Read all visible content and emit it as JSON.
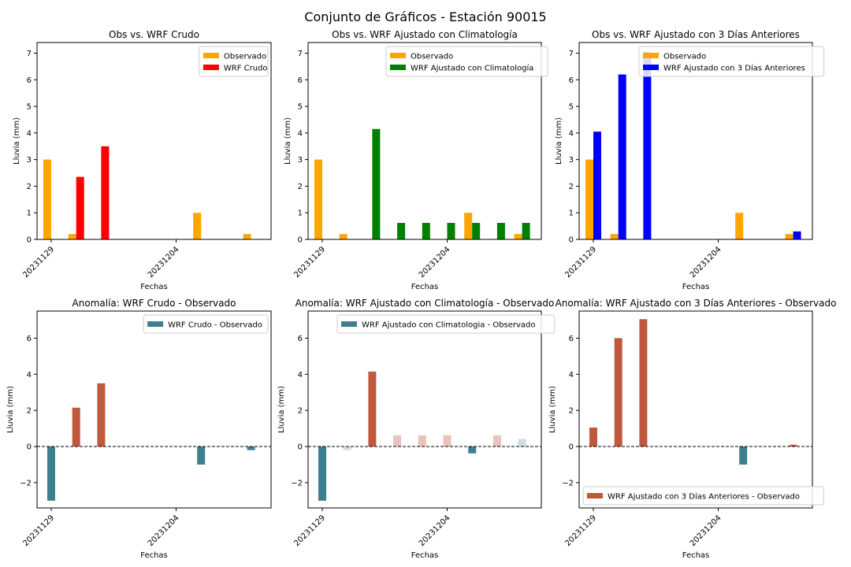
{
  "figure": {
    "suptitle": "Conjunto de Gráficos - Estación 90015"
  },
  "colors": {
    "observado": "#FFA500",
    "wrf_crudo": "#FF0000",
    "wrf_clim": "#008000",
    "wrf_3d": "#0000FF",
    "anom_pos": "#C0583E",
    "anom_neg": "#3D7F8F",
    "anom_pos_light": "#E8C4BA",
    "anom_neg_light": "#CFDCE1"
  },
  "chart_data": [
    {
      "type": "bar",
      "title": "Obs vs. WRF Crudo",
      "xlabel": "Fechas",
      "ylabel": "Lluvia (mm)",
      "ylim": [
        0,
        7.4
      ],
      "yticks": [
        0,
        1,
        2,
        3,
        4,
        5,
        6,
        7
      ],
      "xticks": [
        "20231129",
        "20231204"
      ],
      "legend_position": "upper right",
      "series": [
        {
          "name": "Observado",
          "color": "#FFA500",
          "values": [
            3.0,
            0.2,
            0.0,
            0.0,
            0.0,
            0.0,
            1.0,
            0.0,
            0.2
          ]
        },
        {
          "name": "WRF Crudo",
          "color": "#FF0000",
          "values": [
            0.0,
            2.35,
            3.5,
            0.0,
            0.0,
            0.0,
            0.0,
            0.0,
            0.0
          ]
        }
      ]
    },
    {
      "type": "bar",
      "title": "Obs vs. WRF Ajustado con Climatología",
      "xlabel": "Fechas",
      "ylabel": "Lluvia (mm)",
      "ylim": [
        0,
        7.4
      ],
      "yticks": [
        0,
        1,
        2,
        3,
        4,
        5,
        6,
        7
      ],
      "xticks": [
        "20231129",
        "20231204"
      ],
      "legend_position": "upper right",
      "series": [
        {
          "name": "Observado",
          "color": "#FFA500",
          "values": [
            3.0,
            0.2,
            0.0,
            0.0,
            0.0,
            0.0,
            1.0,
            0.0,
            0.2
          ]
        },
        {
          "name": "WRF Ajustado con Climatología",
          "color": "#008000",
          "values": [
            0.0,
            0.0,
            4.15,
            0.62,
            0.62,
            0.62,
            0.62,
            0.62,
            0.62
          ]
        }
      ]
    },
    {
      "type": "bar",
      "title": "Obs vs. WRF Ajustado con 3 Días Anteriores",
      "xlabel": "Fechas",
      "ylabel": "Lluvia (mm)",
      "ylim": [
        0,
        7.4
      ],
      "yticks": [
        0,
        1,
        2,
        3,
        4,
        5,
        6,
        7
      ],
      "xticks": [
        "20231129",
        "20231204"
      ],
      "legend_position": "upper right",
      "series": [
        {
          "name": "Observado",
          "color": "#FFA500",
          "values": [
            3.0,
            0.2,
            0.0,
            0.0,
            0.0,
            0.0,
            1.0,
            0.0,
            0.2
          ]
        },
        {
          "name": "WRF Ajustado con 3 Días Anteriores",
          "color": "#0000FF",
          "values": [
            4.05,
            6.2,
            7.05,
            0.0,
            0.0,
            0.0,
            0.0,
            0.0,
            0.3
          ]
        }
      ]
    },
    {
      "type": "bar",
      "title": "Anomalía: WRF Crudo - Observado",
      "xlabel": "Fechas",
      "ylabel": "Lluvia (mm)",
      "ylim": [
        -3.4,
        7.5
      ],
      "yticks": [
        -2,
        0,
        2,
        4,
        6
      ],
      "xticks": [
        "20231129",
        "20231204"
      ],
      "legend_position": "upper right",
      "zero_line": true,
      "series": [
        {
          "name": "WRF Crudo - Observado",
          "values": [
            -3.0,
            2.15,
            3.5,
            0.0,
            0.0,
            0.0,
            -1.0,
            0.0,
            -0.2
          ]
        }
      ]
    },
    {
      "type": "bar",
      "title": "Anomalía: WRF Ajustado con Climatología - Observado",
      "xlabel": "Fechas",
      "ylabel": "Lluvia (mm)",
      "ylim": [
        -3.4,
        7.5
      ],
      "yticks": [
        -2,
        0,
        2,
        4,
        6
      ],
      "xticks": [
        "20231129",
        "20231204"
      ],
      "legend_position": "upper right",
      "zero_line": true,
      "series": [
        {
          "name": "WRF Ajustado con Climatologia - Observado",
          "values": [
            -3.0,
            -0.2,
            4.15,
            0.62,
            0.62,
            0.62,
            -0.38,
            0.62,
            0.42
          ]
        }
      ]
    },
    {
      "type": "bar",
      "title": "Anomalía: WRF Ajustado con 3 Días Anteriores - Observado",
      "xlabel": "Fechas",
      "ylabel": "Lluvia (mm)",
      "ylim": [
        -3.4,
        7.5
      ],
      "yticks": [
        -2,
        0,
        2,
        4,
        6
      ],
      "xticks": [
        "20231129",
        "20231204"
      ],
      "legend_position": "lower right",
      "zero_line": true,
      "series": [
        {
          "name": "WRF Ajustado con 3 Días Anteriores - Observado",
          "values": [
            1.05,
            6.0,
            7.05,
            0.0,
            0.0,
            0.0,
            -1.0,
            0.0,
            0.1
          ]
        }
      ]
    }
  ]
}
